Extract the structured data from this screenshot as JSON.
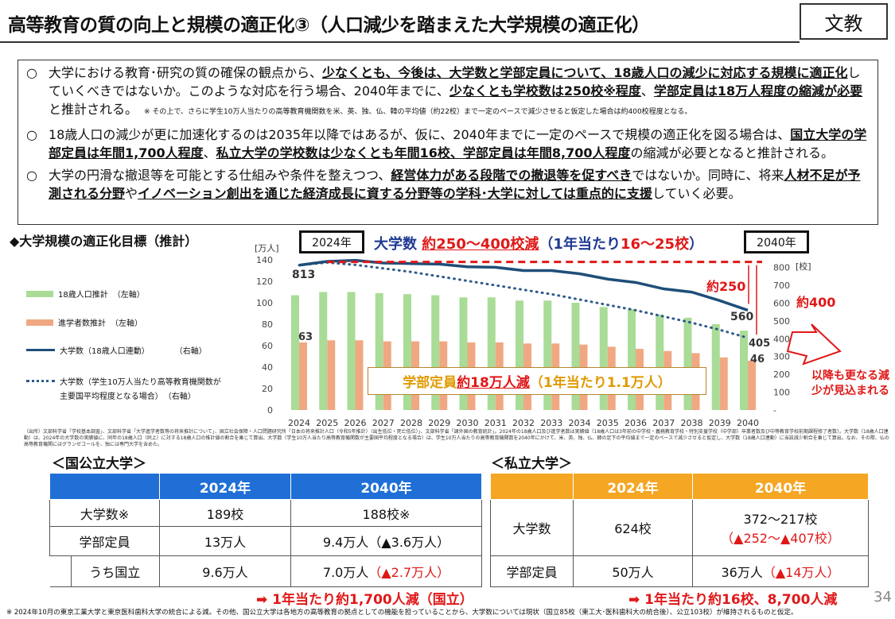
{
  "header": {
    "title": "高等教育の質の向上と規模の適正化③（人口減少を踏まえた大学規模の適正化）",
    "category": "文教"
  },
  "bullets": [
    {
      "marker": "○",
      "segments": [
        {
          "t": "大学における教育･研究の質の確保の観点から、"
        },
        {
          "t": "少なくとも、今後は、大学数と学部定員について、18歳人口の減少に対応する規模に適正化",
          "b": true
        },
        {
          "t": "していくべきではないか。このような対応を行う場合、2040年までに、"
        },
        {
          "t": "少なくとも学校数は250校※程度",
          "b": true
        },
        {
          "t": "、"
        },
        {
          "t": "学部定員は18万人程度の縮減が必要",
          "b": true
        },
        {
          "t": "と推計される。　"
        },
        {
          "t": "※ その上で、さらに学生10万人当たりの高等教育機関数を米、英、独、仏、韓の平均値（約22校）まで一定のペースで減少させると仮定した場合は約400校程度となる。",
          "s": true
        }
      ]
    },
    {
      "marker": "○",
      "segments": [
        {
          "t": "18歳人口の減少が更に加速化するのは2035年以降ではあるが、仮に、2040年までに一定のペースで規模の適正化を図る場合は、"
        },
        {
          "t": "国立大学の学部定員は年間1,700人程度",
          "b": true
        },
        {
          "t": "、"
        },
        {
          "t": "私立大学の学校数は少なくとも年間16校、学部定員は年間8,700人程度",
          "b": true
        },
        {
          "t": "の縮減が必要となると推計される。"
        }
      ]
    },
    {
      "marker": "○",
      "segments": [
        {
          "t": "大学の円滑な撤退等を可能とする仕組みや条件を整えつつ、"
        },
        {
          "t": "経営体力がある段階での撤退等を促すべき",
          "b": true
        },
        {
          "t": "ではないか。同時に、将来"
        },
        {
          "t": "人材不足が予測される分野",
          "b": true
        },
        {
          "t": "や"
        },
        {
          "t": "イノベーション創出を通じた経済成長に資する分野等の学科･大学に対しては重点的に支援",
          "b": true
        },
        {
          "t": "していく必要。"
        }
      ]
    }
  ],
  "section_title": "◆大学規模の適正化目標（推計）",
  "legend": [
    {
      "label": "18歳人口推計",
      "axis": "（左軸）",
      "color": "#a9dc97"
    },
    {
      "label": "進学者数推計",
      "axis": "（左軸）",
      "color": "#f0a882"
    },
    {
      "label": "大学数（18歳人口連動）",
      "axis": "（右軸）",
      "color": "#1f4e79"
    },
    {
      "label": "大学数（学生10万人当たり高等教育機関数が",
      "label2": "主要国平均程度となる場合）",
      "axis": "（右軸）",
      "color": "#2e5a8a"
    }
  ],
  "chart_data": {
    "type": "bar+line",
    "categories": [
      "2024",
      "2025",
      "2026",
      "2027",
      "2028",
      "2029",
      "2030",
      "2031",
      "2032",
      "2033",
      "2034",
      "2035",
      "2036",
      "2037",
      "2038",
      "2039",
      "2040"
    ],
    "left_unit": "[万人]",
    "right_unit": "[校]",
    "left_ticks": [
      "0",
      "20",
      "40",
      "60",
      "80",
      "100",
      "120",
      "140"
    ],
    "right_ticks": [
      "-",
      "100",
      "200",
      "300",
      "400",
      "500",
      "600",
      "700",
      "800"
    ],
    "ylim_left": [
      0,
      140
    ],
    "ylim_right": [
      0,
      843
    ],
    "series": [
      {
        "name": "18歳人口推計",
        "type": "bar",
        "axis": "left",
        "values": [
          107,
          110,
          110,
          109,
          108,
          107,
          105,
          105,
          102,
          102,
          100,
          96,
          94,
          89,
          86,
          80,
          74
        ]
      },
      {
        "name": "進学者数推計",
        "type": "bar",
        "axis": "left",
        "values": [
          63,
          65,
          65,
          64,
          64,
          64,
          63,
          63,
          62,
          62,
          61,
          59,
          57,
          55,
          53,
          49,
          46
        ]
      },
      {
        "name": "大学数（18歳人口連動）",
        "type": "line",
        "axis": "right",
        "values": [
          813,
          834,
          840,
          825,
          822,
          819,
          804,
          801,
          783,
          783,
          765,
          735,
          716,
          680,
          662,
          614,
          560
        ]
      },
      {
        "name": "大学数（学生10万人当たり高等教育機関数が主要国平均程度となる場合）",
        "type": "dotted-line",
        "axis": "right",
        "values": [
          813,
          828,
          815,
          795,
          775,
          750,
          725,
          700,
          675,
          650,
          620,
          590,
          560,
          525,
          490,
          450,
          405
        ]
      }
    ],
    "data_labels": {
      "start_schools": "813",
      "start_enrolled": "63",
      "end_schools": "560",
      "end_schools_dotted": "405",
      "end_enrolled": "46"
    },
    "annotations": {
      "year_start": "2024年",
      "year_end": "2040年",
      "diff1": "約250",
      "diff2": "約400",
      "future": "以降も更なる減少が見込まれる"
    },
    "headline": {
      "a": "大学数 ",
      "b": "約250～400校減",
      "c": "（1年当たり",
      "d": "16～25校",
      "e": "）"
    },
    "enroll_box": {
      "a": "学部定員 ",
      "b": "約18万人減",
      "c": "（1年当たり1.1万人）"
    }
  },
  "source_note": "（出所）文部科学省「学校基本調査」、文部科学省「大学進学者数等の将来推計について」、国立社会保障・人口問題研究所「日本の将来推計人口（令和5年推計）（出生低位・死亡低位）」、文部科学省「諸外国の教育統計」。2024年の18歳人口及び進学者数は実績値（18歳人口は3年前の中学校・義務教育学校・特別支援学校（中学部）卒業者数及び中等教育学校前期課程修了者数）。大学数（18歳人口連動）は、2024年の大学数の実績値に、同年の18歳人口（同上）に対する18歳人口の推計値の割合を乗じて算出。大学数（学生10万人当たり高等教育機関数が主要国平均程度となる場合）は、学生10万人当たりの高等教育機関数を2040年にかけて、米、英、独、仏、韓の足下の平均値まで一定のペースで減少させると仮定し、大学数（18歳人口連動）に当該減少割合を乗じて算出。なお、その際、仏の高等教育機関にはグランゼコールを、独には専門大学を含めた。",
  "public": {
    "title": "＜国公立大学＞",
    "color": "#1f6fd6",
    "headers": [
      "",
      "2024年",
      "2040年"
    ],
    "rows": [
      [
        "大学数※",
        "189校",
        "188校※",
        ""
      ],
      [
        "学部定員",
        "13万人",
        "9.4万人",
        "（▲3.6万人）"
      ],
      [
        "うち国立",
        "9.6万人",
        "7.0万人",
        "（▲2.7万人）"
      ]
    ],
    "summary": "➡ 1年当たり約1,700人減（国立）"
  },
  "private": {
    "title": "＜私立大学＞",
    "color": "#f5a623",
    "headers": [
      "",
      "2024年",
      "2040年"
    ],
    "rows": [
      [
        "大学数",
        "624校",
        "372～217校",
        "（▲252～▲407校）"
      ],
      [
        "学部定員",
        "50万人",
        "36万人",
        "（▲14万人）"
      ]
    ],
    "summary": "➡ 1年当たり約16校、8,700人減"
  },
  "page_number": "34",
  "footnote": "※ 2024年10月の東京工業大学と東京医科歯科大学の統合による減。その他、国公立大学は各地方の高等教育の拠点としての機能を担っていることから、大学数については現状（国立85校（東工大･医科歯科大の統合後）、公立103校）が維持されるものと仮定。"
}
